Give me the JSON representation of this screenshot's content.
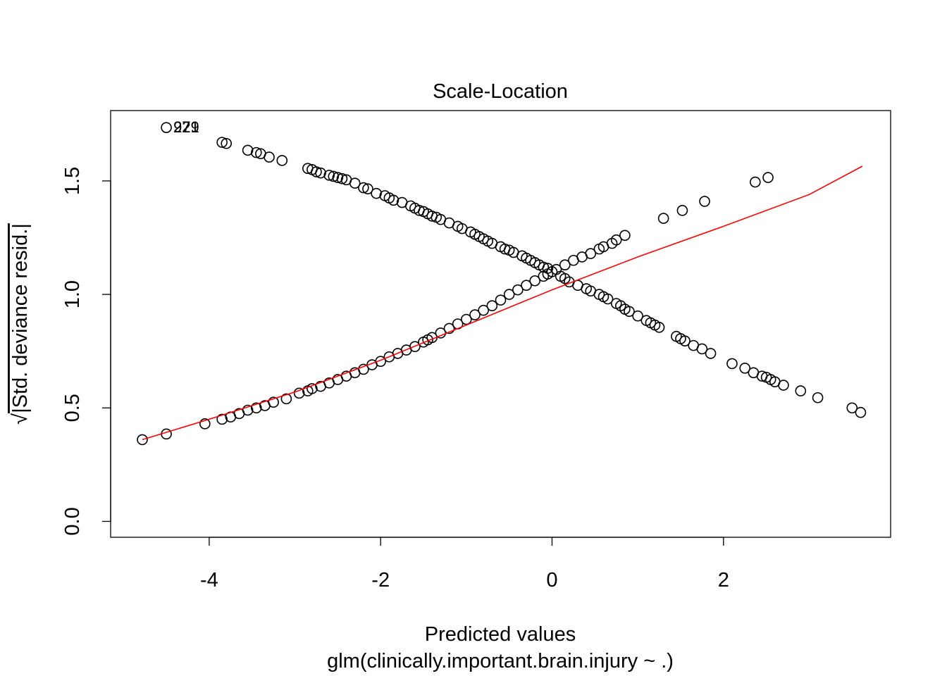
{
  "chart_data": {
    "type": "scatter",
    "title": "Scale-Location",
    "xlabel": "Predicted values",
    "subtitle": "glm(clinically.important.brain.injury ~ .)",
    "ylabel_sqrt_symbol": "√",
    "ylabel": "|Std. deviance resid.|",
    "xlim": [
      -5.15,
      3.95
    ],
    "ylim": [
      -0.07,
      1.81
    ],
    "x_ticks": [
      -4,
      -2,
      0,
      2
    ],
    "x_tick_labels": [
      "-4",
      "-2",
      "0",
      "2"
    ],
    "y_ticks": [
      0.0,
      0.5,
      1.0,
      1.5
    ],
    "y_tick_labels": [
      "0.0",
      "0.5",
      "1.0",
      "1.5"
    ],
    "point_color": "#000000",
    "smoother_color": "#ff0000",
    "labeled_points": [
      {
        "label": "229",
        "x": -4.5,
        "y": 1.735
      },
      {
        "label": "221",
        "x": -4.5,
        "y": 1.735
      },
      {
        "label": "97",
        "x": -4.5,
        "y": 1.735
      }
    ],
    "series": [
      {
        "values": [
          [
            -4.5,
            1.735
          ],
          [
            -3.85,
            1.67
          ],
          [
            -3.8,
            1.665
          ],
          [
            -3.55,
            1.635
          ],
          [
            -3.45,
            1.625
          ],
          [
            -3.4,
            1.62
          ],
          [
            -3.3,
            1.605
          ],
          [
            -3.15,
            1.59
          ],
          [
            -2.85,
            1.555
          ],
          [
            -2.8,
            1.55
          ],
          [
            -2.75,
            1.54
          ],
          [
            -2.7,
            1.535
          ],
          [
            -2.6,
            1.525
          ],
          [
            -2.55,
            1.52
          ],
          [
            -2.5,
            1.515
          ],
          [
            -2.45,
            1.51
          ],
          [
            -2.4,
            1.505
          ],
          [
            -2.3,
            1.49
          ],
          [
            -2.2,
            1.47
          ],
          [
            -2.15,
            1.465
          ],
          [
            -2.05,
            1.445
          ],
          [
            -1.95,
            1.435
          ],
          [
            -1.9,
            1.425
          ],
          [
            -1.85,
            1.415
          ],
          [
            -1.75,
            1.405
          ],
          [
            -1.65,
            1.39
          ],
          [
            -1.6,
            1.38
          ],
          [
            -1.55,
            1.37
          ],
          [
            -1.5,
            1.365
          ],
          [
            -1.45,
            1.355
          ],
          [
            -1.4,
            1.345
          ],
          [
            -1.35,
            1.34
          ],
          [
            -1.3,
            1.33
          ],
          [
            -1.2,
            1.315
          ],
          [
            -1.1,
            1.3
          ],
          [
            -1.05,
            1.29
          ],
          [
            -0.95,
            1.275
          ],
          [
            -0.9,
            1.265
          ],
          [
            -0.85,
            1.255
          ],
          [
            -0.8,
            1.245
          ],
          [
            -0.75,
            1.235
          ],
          [
            -0.7,
            1.225
          ],
          [
            -0.6,
            1.21
          ],
          [
            -0.55,
            1.2
          ],
          [
            -0.5,
            1.195
          ],
          [
            -0.45,
            1.185
          ],
          [
            -0.35,
            1.17
          ],
          [
            -0.3,
            1.16
          ],
          [
            -0.25,
            1.15
          ],
          [
            -0.2,
            1.14
          ],
          [
            -0.15,
            1.13
          ],
          [
            -0.1,
            1.12
          ],
          [
            -0.05,
            1.115
          ],
          [
            0.0,
            1.1
          ],
          [
            0.1,
            1.08
          ],
          [
            0.15,
            1.07
          ],
          [
            0.2,
            1.055
          ],
          [
            0.3,
            1.04
          ],
          [
            0.4,
            1.025
          ],
          [
            0.45,
            1.015
          ],
          [
            0.55,
            1.0
          ],
          [
            0.6,
            0.99
          ],
          [
            0.65,
            0.98
          ],
          [
            0.75,
            0.96
          ],
          [
            0.8,
            0.95
          ],
          [
            0.85,
            0.935
          ],
          [
            0.9,
            0.925
          ],
          [
            1.0,
            0.905
          ],
          [
            1.1,
            0.885
          ],
          [
            1.15,
            0.875
          ],
          [
            1.2,
            0.865
          ],
          [
            1.25,
            0.855
          ],
          [
            1.45,
            0.815
          ],
          [
            1.5,
            0.805
          ],
          [
            1.55,
            0.795
          ],
          [
            1.65,
            0.775
          ],
          [
            1.75,
            0.76
          ],
          [
            1.85,
            0.74
          ],
          [
            2.1,
            0.695
          ],
          [
            2.25,
            0.675
          ],
          [
            2.35,
            0.655
          ],
          [
            2.45,
            0.64
          ],
          [
            2.5,
            0.635
          ],
          [
            2.55,
            0.625
          ],
          [
            2.6,
            0.615
          ],
          [
            2.7,
            0.6
          ],
          [
            2.9,
            0.575
          ],
          [
            3.1,
            0.545
          ],
          [
            3.5,
            0.5
          ],
          [
            3.6,
            0.48
          ],
          [
            -4.78,
            0.36
          ],
          [
            -4.5,
            0.385
          ],
          [
            -4.05,
            0.43
          ],
          [
            -3.85,
            0.45
          ],
          [
            -3.75,
            0.46
          ],
          [
            -3.65,
            0.475
          ],
          [
            -3.55,
            0.49
          ],
          [
            -3.45,
            0.5
          ],
          [
            -3.35,
            0.51
          ],
          [
            -3.25,
            0.525
          ],
          [
            -3.1,
            0.54
          ],
          [
            -2.95,
            0.565
          ],
          [
            -2.85,
            0.575
          ],
          [
            -2.8,
            0.585
          ],
          [
            -2.7,
            0.595
          ],
          [
            -2.6,
            0.61
          ],
          [
            -2.5,
            0.625
          ],
          [
            -2.4,
            0.64
          ],
          [
            -2.3,
            0.655
          ],
          [
            -2.2,
            0.67
          ],
          [
            -2.1,
            0.69
          ],
          [
            -2.0,
            0.705
          ],
          [
            -1.9,
            0.725
          ],
          [
            -1.8,
            0.74
          ],
          [
            -1.7,
            0.755
          ],
          [
            -1.6,
            0.77
          ],
          [
            -1.5,
            0.79
          ],
          [
            -1.45,
            0.8
          ],
          [
            -1.4,
            0.81
          ],
          [
            -1.3,
            0.83
          ],
          [
            -1.2,
            0.85
          ],
          [
            -1.1,
            0.87
          ],
          [
            -1.0,
            0.89
          ],
          [
            -0.9,
            0.91
          ],
          [
            -0.8,
            0.93
          ],
          [
            -0.7,
            0.95
          ],
          [
            -0.6,
            0.975
          ],
          [
            -0.5,
            1.0
          ],
          [
            -0.4,
            1.02
          ],
          [
            -0.3,
            1.04
          ],
          [
            -0.2,
            1.06
          ],
          [
            -0.1,
            1.08
          ],
          [
            -0.05,
            1.09
          ],
          [
            0.05,
            1.11
          ],
          [
            0.15,
            1.13
          ],
          [
            0.25,
            1.15
          ],
          [
            0.35,
            1.165
          ],
          [
            0.45,
            1.18
          ],
          [
            0.55,
            1.2
          ],
          [
            0.6,
            1.21
          ],
          [
            0.7,
            1.225
          ],
          [
            0.75,
            1.24
          ],
          [
            0.85,
            1.26
          ],
          [
            1.3,
            1.335
          ],
          [
            1.52,
            1.37
          ],
          [
            1.78,
            1.41
          ],
          [
            2.37,
            1.495
          ],
          [
            2.52,
            1.515
          ]
        ]
      }
    ],
    "smoother": [
      [
        -4.78,
        0.36
      ],
      [
        -4.0,
        0.45
      ],
      [
        -3.0,
        0.57
      ],
      [
        -2.0,
        0.71
      ],
      [
        -1.0,
        0.865
      ],
      [
        0.0,
        1.02
      ],
      [
        1.0,
        1.165
      ],
      [
        2.0,
        1.3
      ],
      [
        3.0,
        1.44
      ],
      [
        3.62,
        1.565
      ]
    ]
  }
}
